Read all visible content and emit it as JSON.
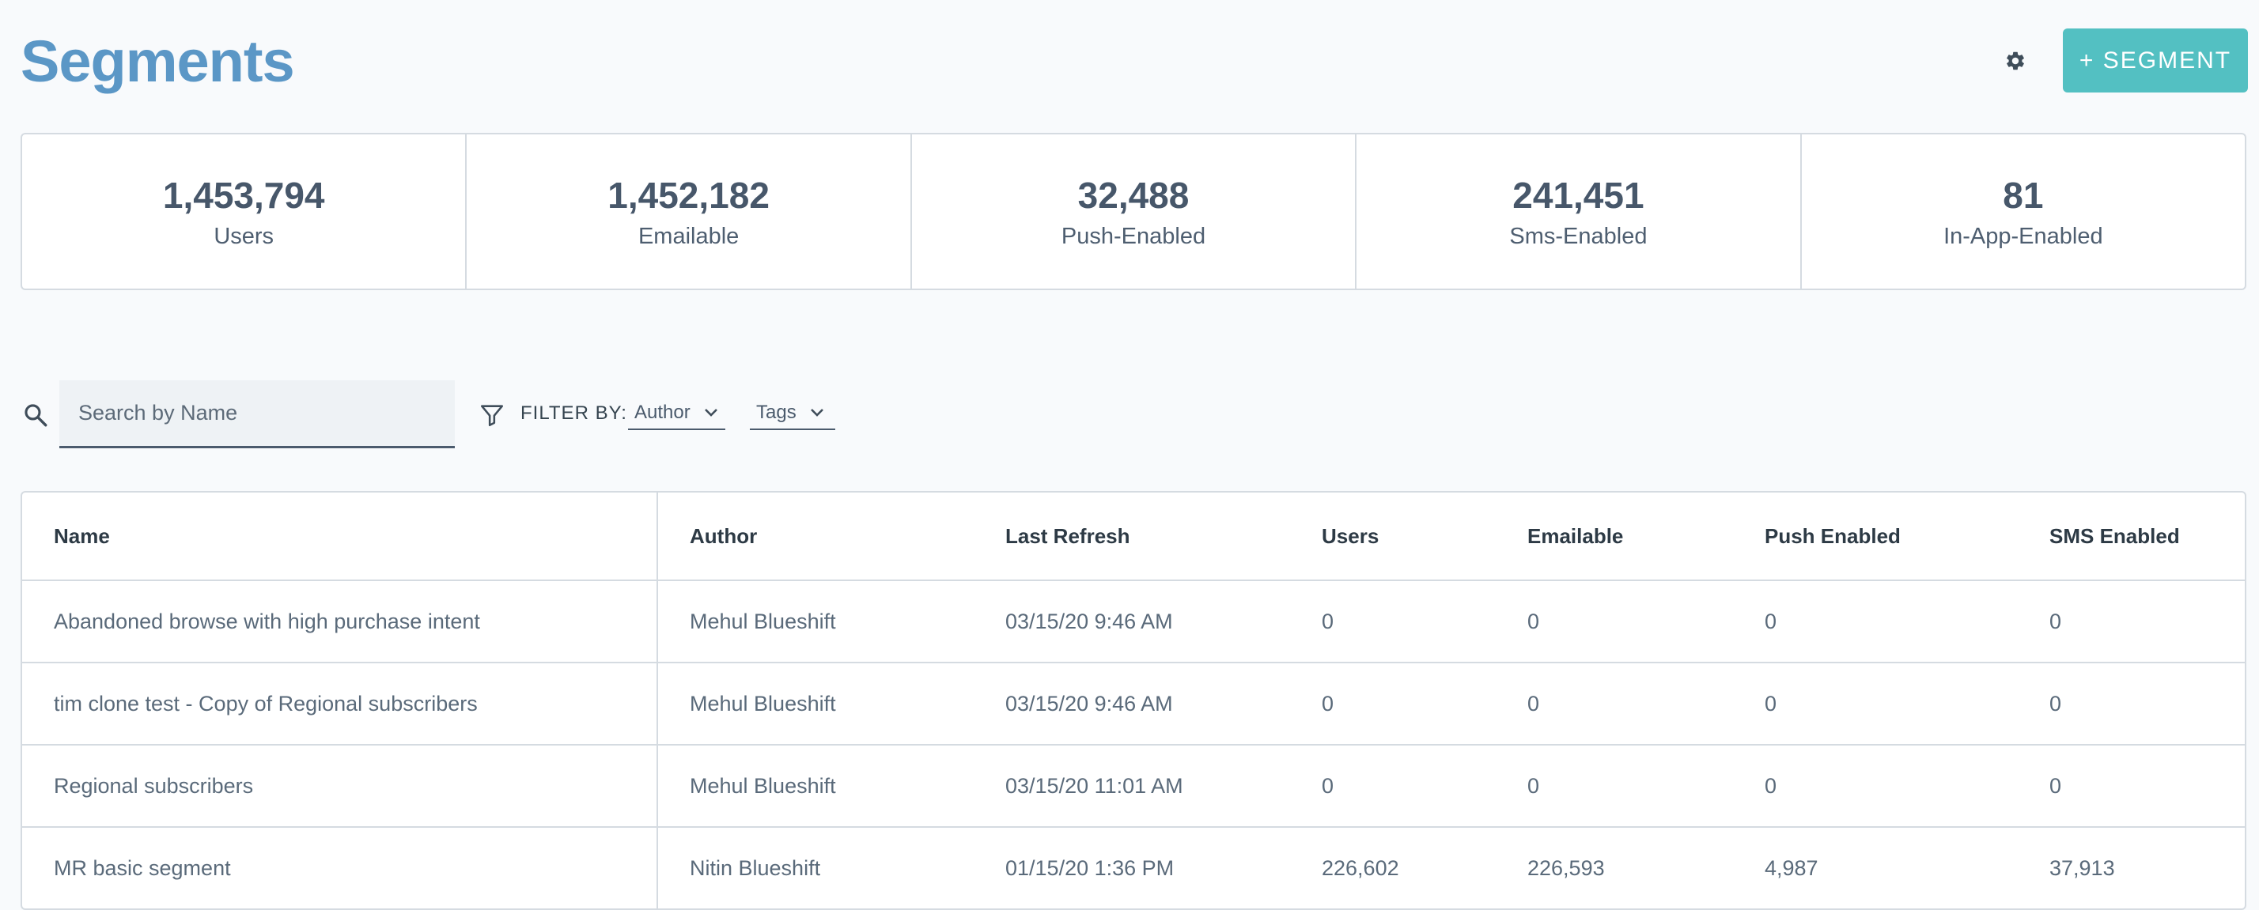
{
  "header": {
    "title": "Segments",
    "add_button_label": "+ SEGMENT",
    "settings_icon": "gear-icon"
  },
  "stats": [
    {
      "value": "1,453,794",
      "label": "Users"
    },
    {
      "value": "1,452,182",
      "label": "Emailable"
    },
    {
      "value": "32,488",
      "label": "Push-Enabled"
    },
    {
      "value": "241,451",
      "label": "Sms-Enabled"
    },
    {
      "value": "81",
      "label": "In-App-Enabled"
    }
  ],
  "toolbar": {
    "search_placeholder": "Search by Name",
    "search_icon": "search-icon",
    "filter_icon": "filter-icon",
    "filter_label": "FILTER BY:",
    "filters": [
      {
        "label": "Author"
      },
      {
        "label": "Tags"
      }
    ]
  },
  "table": {
    "columns": [
      "Name",
      "Author",
      "Last Refresh",
      "Users",
      "Emailable",
      "Push Enabled",
      "SMS Enabled"
    ],
    "rows": [
      [
        "Abandoned browse with high purchase intent",
        "Mehul Blueshift",
        "03/15/20 9:46 AM",
        "0",
        "0",
        "0",
        "0"
      ],
      [
        "tim clone test - Copy of Regional subscribers",
        "Mehul Blueshift",
        "03/15/20 9:46 AM",
        "0",
        "0",
        "0",
        "0"
      ],
      [
        "Regional subscribers",
        "Mehul Blueshift",
        "03/15/20 11:01 AM",
        "0",
        "0",
        "0",
        "0"
      ],
      [
        "MR basic segment",
        "Nitin Blueshift",
        "01/15/20 1:36 PM",
        "226,602",
        "226,593",
        "4,987",
        "37,913"
      ]
    ]
  },
  "colors": {
    "title": "#5b97c6",
    "accent_button": "#53c0c2",
    "text": "#4a5a6c",
    "border": "#d5dbe1",
    "background": "#f8fafc"
  }
}
